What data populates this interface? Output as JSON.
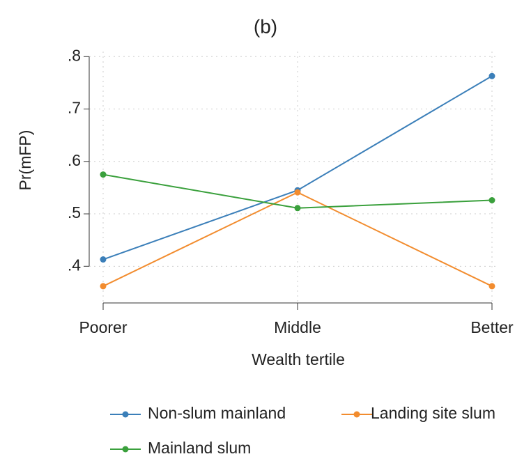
{
  "chart_data": {
    "type": "line",
    "title": "(b)",
    "x_label": "Wealth tertile",
    "y_label": "Pr(mFP)",
    "categories": [
      "Poorer",
      "Middle",
      "Better"
    ],
    "series": [
      {
        "name": "Non-slum mainland",
        "color": "#3b7fb9",
        "values": [
          0.413,
          0.545,
          0.763
        ]
      },
      {
        "name": "Landing site slum",
        "color": "#f28c2e",
        "values": [
          0.362,
          0.541,
          0.362
        ]
      },
      {
        "name": "Mainland slum",
        "color": "#3aa03c",
        "values": [
          0.575,
          0.511,
          0.526
        ]
      }
    ],
    "ylim": [
      0.33,
      0.815
    ],
    "yticks": [
      {
        "value": 0.4,
        "label": ".4"
      },
      {
        "value": 0.5,
        "label": ".5"
      },
      {
        "value": 0.6,
        "label": ".6"
      },
      {
        "value": 0.7,
        "label": ".7"
      },
      {
        "value": 0.8,
        "label": ".8"
      }
    ],
    "grid": true
  }
}
